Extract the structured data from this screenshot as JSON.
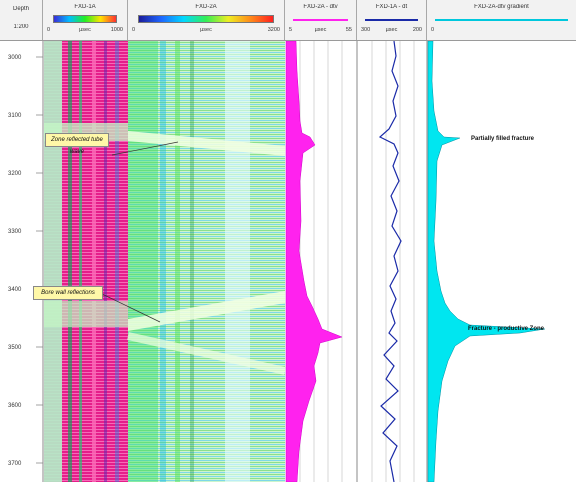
{
  "header": {
    "depth_title": "Depth",
    "depth_scale": "1:200",
    "columns": [
      {
        "title": "FXD-1A",
        "min": "0",
        "unit": "µsec",
        "max": "1000"
      },
      {
        "title": "FXD-2A",
        "min": "0",
        "unit": "µsec",
        "max": "3200"
      },
      {
        "title": "FXD-2A - dtv",
        "min": "5",
        "unit": "µsec",
        "max": "55"
      },
      {
        "title": "FXD-1A - dt",
        "min": "300",
        "unit": "µsec",
        "max": "200"
      },
      {
        "title": "FXD-2A-dtv gradient",
        "min": "0",
        "unit": "",
        "max": ""
      }
    ]
  },
  "depth_ticks": [
    "3000",
    "3100",
    "3200",
    "3300",
    "3400",
    "3500",
    "3600",
    "3700"
  ],
  "annotations": {
    "partially_filled": "Partially filled fracture",
    "zone_reflected": "Zone reflected tube wave",
    "borehole_reflections": "Bore wall reflections",
    "fracture_zone": "Fracture - productive Zone"
  },
  "colors": {
    "annotation_box": "#fff8a8",
    "cyan_fill": "#00e6f0",
    "magenta_fill": "#ff22ee",
    "curve_blue": "#1a2aa8"
  }
}
